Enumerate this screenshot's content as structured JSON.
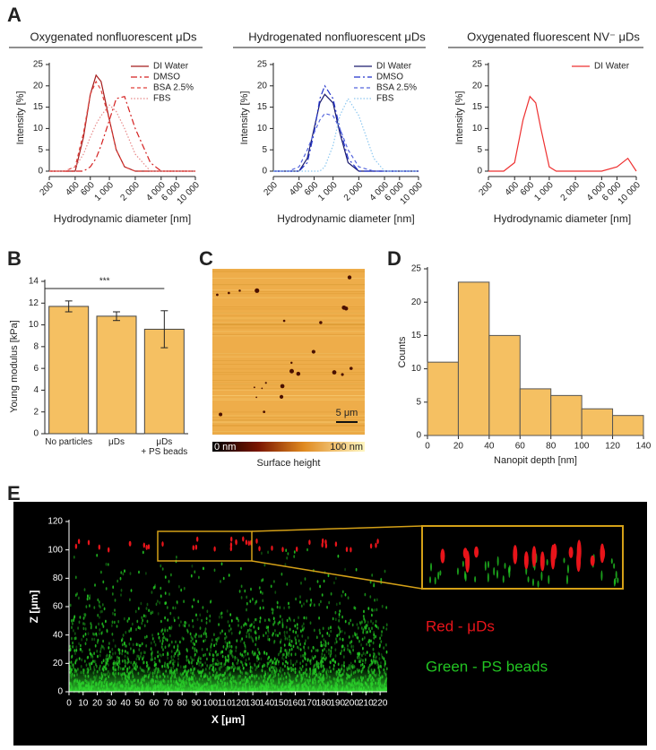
{
  "panel_labels": [
    "A",
    "B",
    "C",
    "D",
    "E"
  ],
  "chart_data": [
    {
      "type": "line",
      "title": "Oxygenated nonfluorescent μDs",
      "x_label": "Hydrodynamic diameter  [nm]",
      "y_label": "Intensity [%]",
      "log_x": true,
      "x": [
        200,
        300,
        400,
        500,
        600,
        700,
        800,
        1000,
        1200,
        1500,
        2000,
        3000,
        4000,
        6000,
        8000,
        10000
      ],
      "xlim": [
        200,
        10000
      ],
      "xticks": [
        200,
        400,
        600,
        {
          "value": 1000,
          "label": "1 000"
        },
        {
          "value": 2000,
          "label": "2 000"
        },
        {
          "value": 4000,
          "label": "4 000"
        },
        {
          "value": 6000,
          "label": "6 000"
        },
        {
          "value": 10000,
          "label": "10 000"
        }
      ],
      "ylim": [
        0,
        25
      ],
      "yticks": [
        0,
        5,
        10,
        15,
        20,
        25
      ],
      "series": [
        {
          "name": "DI Water",
          "color": "#a51c1c",
          "dash": "solid",
          "values": [
            0,
            0,
            0,
            8,
            18,
            22.5,
            21,
            12,
            5,
            1,
            0,
            0,
            0,
            0,
            0,
            0
          ]
        },
        {
          "name": "DMSO",
          "color": "#d42020",
          "dash": "dashdot",
          "values": [
            0,
            0,
            0,
            0,
            1,
            3,
            6,
            12,
            17,
            17.5,
            10,
            2,
            0,
            0,
            0,
            0
          ]
        },
        {
          "name": "BSA 2.5%",
          "color": "#e0403a",
          "dash": "dashed",
          "values": [
            0,
            0,
            1,
            9,
            18,
            21,
            19,
            12,
            5,
            1,
            0,
            0,
            0,
            0,
            0,
            0
          ]
        },
        {
          "name": "FBS",
          "color": "#e88a8a",
          "dash": "dotted",
          "values": [
            0,
            0,
            1,
            4,
            8,
            11,
            13,
            15.5,
            14,
            10,
            4,
            0,
            0,
            0,
            0,
            0
          ]
        }
      ]
    },
    {
      "type": "line",
      "title": "Hydrogenated nonfluorescent μDs",
      "x_label": "Hydrodynamic diameter  [nm]",
      "y_label": "Intensity [%]",
      "log_x": true,
      "x": [
        200,
        300,
        400,
        500,
        600,
        700,
        800,
        1000,
        1200,
        1500,
        2000,
        3000,
        4000,
        6000,
        8000,
        10000
      ],
      "xlim": [
        200,
        10000
      ],
      "xticks": [
        200,
        400,
        600,
        {
          "value": 1000,
          "label": "1 000"
        },
        {
          "value": 2000,
          "label": "2 000"
        },
        {
          "value": 4000,
          "label": "4 000"
        },
        {
          "value": 6000,
          "label": "6 000"
        },
        {
          "value": 10000,
          "label": "10 000"
        }
      ],
      "ylim": [
        0,
        25
      ],
      "yticks": [
        0,
        5,
        10,
        15,
        20,
        25
      ],
      "series": [
        {
          "name": "DI Water",
          "color": "#1a1a6e",
          "dash": "solid",
          "values": [
            0,
            0,
            0,
            3,
            10,
            16,
            18,
            16,
            9,
            2,
            0,
            0,
            0,
            0,
            0,
            0
          ]
        },
        {
          "name": "DMSO",
          "color": "#2233cc",
          "dash": "dashdot",
          "values": [
            0,
            0,
            0,
            2,
            9,
            17,
            20,
            17,
            10,
            3,
            0,
            0,
            0,
            0,
            0,
            0
          ]
        },
        {
          "name": "BSA 2.5%",
          "color": "#5566dd",
          "dash": "dashed",
          "values": [
            0,
            0,
            1,
            5,
            9,
            12,
            13.5,
            13,
            10,
            5,
            1,
            0,
            0,
            0,
            0,
            0
          ]
        },
        {
          "name": "FBS",
          "color": "#8ec8f0",
          "dash": "dotted",
          "values": [
            0,
            0,
            0,
            0,
            0,
            0,
            1,
            6,
            13,
            17,
            13,
            3,
            0,
            0,
            0,
            0
          ]
        }
      ]
    },
    {
      "type": "line",
      "title": "Oxygenated fluorescent NV⁻ μDs",
      "x_label": "Hydrodynamic diameter  [nm]",
      "y_label": "Intensity [%]",
      "log_x": true,
      "x": [
        200,
        300,
        400,
        500,
        600,
        700,
        800,
        1000,
        1200,
        1500,
        2000,
        3000,
        4000,
        6000,
        8000,
        10000
      ],
      "xlim": [
        200,
        10000
      ],
      "xticks": [
        200,
        400,
        600,
        {
          "value": 1000,
          "label": "1 000"
        },
        {
          "value": 2000,
          "label": "2 000"
        },
        {
          "value": 4000,
          "label": "4 000"
        },
        {
          "value": 6000,
          "label": "6 000"
        },
        {
          "value": 10000,
          "label": "10 000"
        }
      ],
      "ylim": [
        0,
        25
      ],
      "yticks": [
        0,
        5,
        10,
        15,
        20,
        25
      ],
      "series": [
        {
          "name": "DI Water",
          "color": "#ee3030",
          "dash": "solid",
          "values": [
            0,
            0,
            2,
            12,
            17.5,
            16,
            10,
            1,
            0,
            0,
            0,
            0,
            0,
            1,
            3,
            0
          ]
        }
      ]
    },
    {
      "type": "bar",
      "y_label": "Young modulus [kPa]",
      "categories": [
        "No particles",
        "μDs",
        "μDs\n+ PS beads"
      ],
      "values": [
        11.7,
        10.8,
        9.6
      ],
      "errors": [
        0.5,
        0.4,
        1.7
      ],
      "color": "#f5c062",
      "annotation": "***",
      "ylim": [
        0,
        14
      ],
      "yticks": [
        0,
        2,
        4,
        6,
        8,
        10,
        12,
        14
      ]
    },
    {
      "type": "afm",
      "scale_bar": "5 μm",
      "colorbar_labels": [
        "0 nm",
        "100 nm"
      ],
      "colorbar_title": "Surface height"
    },
    {
      "type": "histogram",
      "x_label": "Nanopit depth [nm]",
      "y_label": "Counts",
      "bins": [
        0,
        20,
        40,
        60,
        80,
        100,
        120,
        140
      ],
      "values": [
        11,
        23,
        15,
        7,
        6,
        4,
        3
      ],
      "color": "#f5c062",
      "xlim": [
        0,
        140
      ],
      "xticks": [
        0,
        20,
        40,
        60,
        80,
        100,
        120,
        140
      ],
      "ylim": [
        0,
        25
      ],
      "yticks": [
        0,
        5,
        10,
        15,
        20,
        25
      ]
    },
    {
      "type": "microscopy",
      "x_label": "X [μm]",
      "y_label": "Z [μm]",
      "xlim": [
        0,
        225
      ],
      "xticks": [
        0,
        10,
        20,
        30,
        40,
        50,
        60,
        70,
        80,
        90,
        100,
        110,
        120,
        130,
        140,
        150,
        160,
        170,
        180,
        190,
        200,
        210,
        220
      ],
      "ylim": [
        0,
        120
      ],
      "yticks": [
        0,
        20,
        40,
        60,
        80,
        100,
        120
      ],
      "legend": [
        {
          "name": "Red - μDs",
          "color": "#e8141a"
        },
        {
          "name": "Green - PS beads",
          "color": "#22c422"
        }
      ]
    }
  ]
}
